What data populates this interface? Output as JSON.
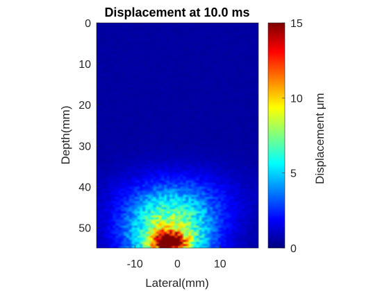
{
  "chart_data": {
    "type": "heatmap",
    "title": "Displacement at 10.0 ms",
    "xlabel": "Lateral(mm)",
    "ylabel": "Depth(mm)",
    "xlim": [
      -19,
      19
    ],
    "ylim": [
      0,
      55
    ],
    "y_reversed": true,
    "xticks": [
      -10,
      0,
      10
    ],
    "yticks": [
      0,
      10,
      20,
      30,
      40,
      50
    ],
    "colormap": "jet",
    "colorbar": {
      "label": "Displacement μm",
      "range": [
        0,
        15
      ],
      "ticks": [
        0,
        5,
        10,
        15
      ]
    },
    "background_value": 0.5,
    "regions": [
      {
        "description": "main displacement blob",
        "x_center": -2,
        "y_center": 52,
        "x_sigma": 7,
        "y_sigma": 6,
        "peak": 8
      },
      {
        "description": "hot spot",
        "x_center": -2,
        "y_center": 53.5,
        "x_sigma": 2.5,
        "y_sigma": 1.5,
        "peak": 13
      },
      {
        "description": "diffuse shear band",
        "x_center": 0,
        "y_center": 43,
        "x_sigma": 10,
        "y_sigma": 5,
        "peak": 2
      }
    ]
  },
  "colors": {
    "axis": "#262626",
    "background": "#ffffff",
    "heatmap_base": "#00008f"
  }
}
